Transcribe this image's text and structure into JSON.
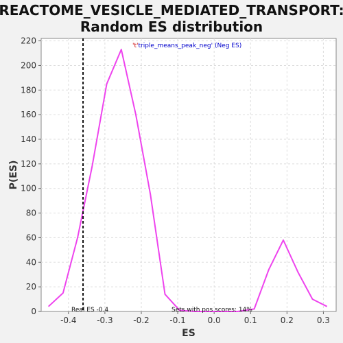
{
  "chart_data": {
    "type": "line",
    "title_line1": "REACTOME_VESICLE_MEDIATED_TRANSPORT:",
    "title_line2": "Random ES distribution",
    "xlabel": "ES",
    "ylabel": "P(ES)",
    "xlim": [
      -0.475,
      0.335
    ],
    "ylim": [
      0,
      222
    ],
    "x_ticks": [
      -0.4,
      -0.3,
      -0.2,
      -0.1,
      0.0,
      0.1,
      0.2,
      0.3
    ],
    "x_tick_labels": [
      "-0.4",
      "-0.3",
      "-0.2",
      "-0.1",
      "0.0",
      "0.1",
      "0.2",
      "0.3"
    ],
    "y_ticks": [
      0,
      20,
      40,
      60,
      80,
      100,
      120,
      140,
      160,
      180,
      200,
      220
    ],
    "y_tick_labels": [
      "0",
      "20",
      "40",
      "60",
      "80",
      "100",
      "120",
      "140",
      "160",
      "180",
      "200",
      "220"
    ],
    "grid": true,
    "series": [
      {
        "color": "#ee44ee",
        "x": [
          -0.455,
          -0.415,
          -0.375,
          -0.335,
          -0.295,
          -0.255,
          -0.215,
          -0.175,
          -0.135,
          -0.095,
          -0.055,
          -0.015,
          0.025,
          0.065,
          0.11,
          0.15,
          0.19,
          0.23,
          0.27,
          0.31
        ],
        "y": [
          4,
          15,
          60,
          118,
          185,
          213,
          160,
          95,
          14,
          1,
          0,
          0,
          0,
          0,
          2,
          34,
          58,
          32,
          10,
          4
        ]
      }
    ],
    "real_es": {
      "x": -0.36,
      "color": "#111111",
      "label": "Real ES -0.4"
    },
    "annotation_prefix": "'t'",
    "annotation_main": "triple_means_peak_neg' (Neg ES)",
    "annotation_prefix_color": "#cc0000",
    "annotation_main_color": "#0000cc",
    "pos_scores_label": "Sets with pos scores: 14%"
  }
}
